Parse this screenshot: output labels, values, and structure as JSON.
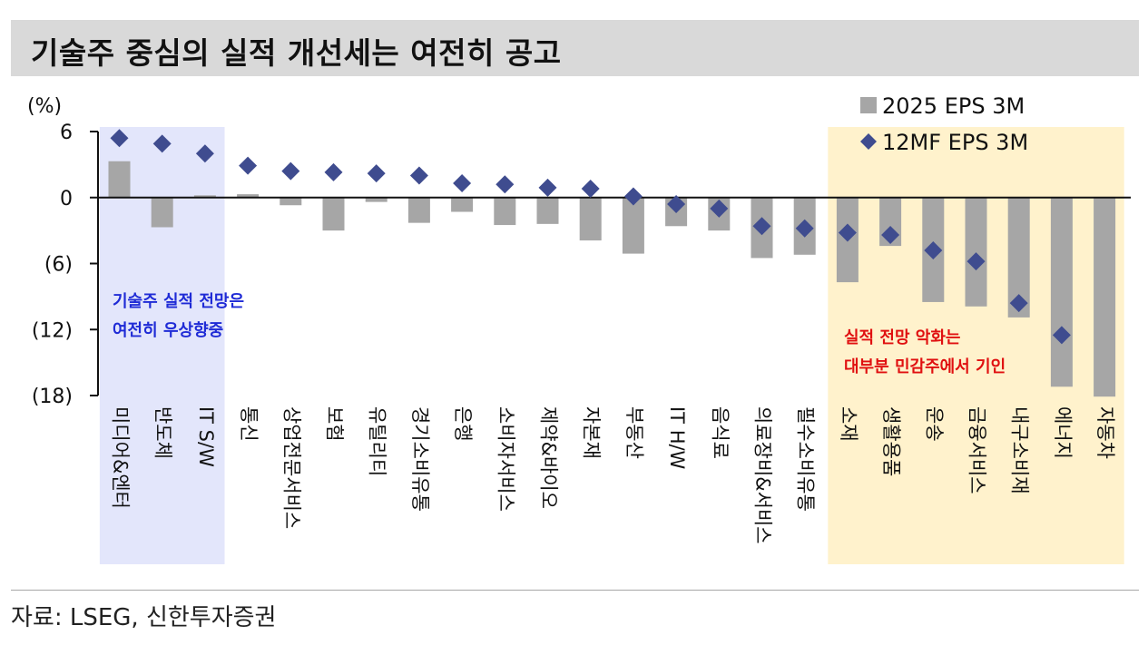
{
  "title": "기술주 중심의 실적 개선세는 여전히 공고",
  "source": "자료: LSEG, 신한투자증권",
  "colors": {
    "bar": "#a6a6a6",
    "marker": "#3f4c8f",
    "left_highlight": "#e3e6fb",
    "right_highlight": "#fff2cc",
    "left_note": "#1f2bd6",
    "right_note": "#e01010"
  },
  "chart_data": {
    "type": "bar",
    "y_unit": "(%)",
    "ylim": [
      -18,
      6
    ],
    "y_ticks": [
      {
        "value": 6,
        "label": "6"
      },
      {
        "value": 0,
        "label": "0"
      },
      {
        "value": -6,
        "label": "(6)"
      },
      {
        "value": -12,
        "label": "(12)"
      },
      {
        "value": -18,
        "label": "(18)"
      }
    ],
    "categories": [
      "미디어&엔터",
      "반도체",
      "IT S/W",
      "통신",
      "상업전문서비스",
      "보험",
      "유틸리티",
      "경기소비유통",
      "은행",
      "소비자서비스",
      "제약&바이오",
      "자본재",
      "부동산",
      "IT H/W",
      "음식료",
      "의료장비&서비스",
      "필수소비유통",
      "소재",
      "생활용품",
      "운송",
      "금융서비스",
      "내구소비재",
      "에너지",
      "자동차"
    ],
    "series": [
      {
        "name": "2025 EPS 3M",
        "kind": "bar",
        "values": [
          3.3,
          -2.7,
          0.2,
          0.3,
          -0.7,
          -3.0,
          -0.4,
          -2.3,
          -1.3,
          -2.5,
          -2.4,
          -3.9,
          -5.1,
          -2.6,
          -3.0,
          -5.5,
          -5.2,
          -7.7,
          -4.4,
          -9.5,
          -9.9,
          -10.9,
          -17.2,
          -18.1
        ]
      },
      {
        "name": "12MF EPS 3M",
        "kind": "marker",
        "values": [
          5.4,
          4.9,
          4.0,
          2.9,
          2.4,
          2.3,
          2.2,
          2.0,
          1.3,
          1.2,
          0.9,
          0.8,
          0.1,
          -0.6,
          -1.0,
          -2.6,
          -2.8,
          -3.2,
          -3.4,
          -4.8,
          -5.8,
          -9.6,
          -12.5,
          null
        ]
      }
    ],
    "legend_position": "top-right",
    "highlights": [
      {
        "range": [
          0,
          2
        ],
        "lines": [
          "기술주 실적 전망은",
          "여전히 우상향중"
        ]
      },
      {
        "range": [
          17,
          23
        ],
        "lines": [
          "실적 전망 악화는",
          "대부분 민감주에서 기인"
        ]
      }
    ]
  }
}
